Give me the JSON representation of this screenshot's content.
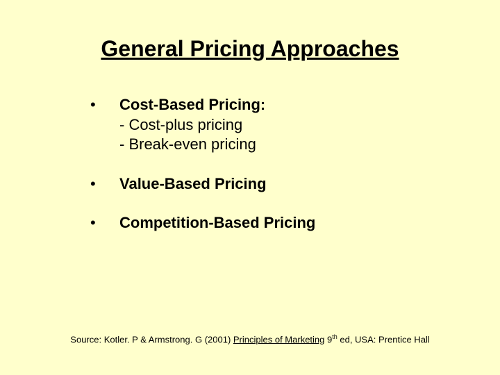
{
  "title": "General Pricing Approaches",
  "bullets": {
    "item1": {
      "heading": "Cost-Based Pricing:",
      "sub1": "- Cost-plus pricing",
      "sub2": "- Break-even pricing"
    },
    "item2": {
      "heading": "Value-Based Pricing"
    },
    "item3": {
      "heading": "Competition-Based Pricing"
    }
  },
  "citation": {
    "prefix": "Source: Kotler. P & Armstrong. G (2001) ",
    "book": "Principles of Marketing",
    "edition_num": " 9",
    "edition_sup": "th",
    "suffix": " ed, USA: Prentice Hall"
  },
  "colors": {
    "background": "#ffffcc",
    "text": "#000000"
  },
  "typography": {
    "title_fontsize": 32,
    "body_fontsize": 22,
    "citation_fontsize": 13,
    "font_family": "Arial"
  }
}
